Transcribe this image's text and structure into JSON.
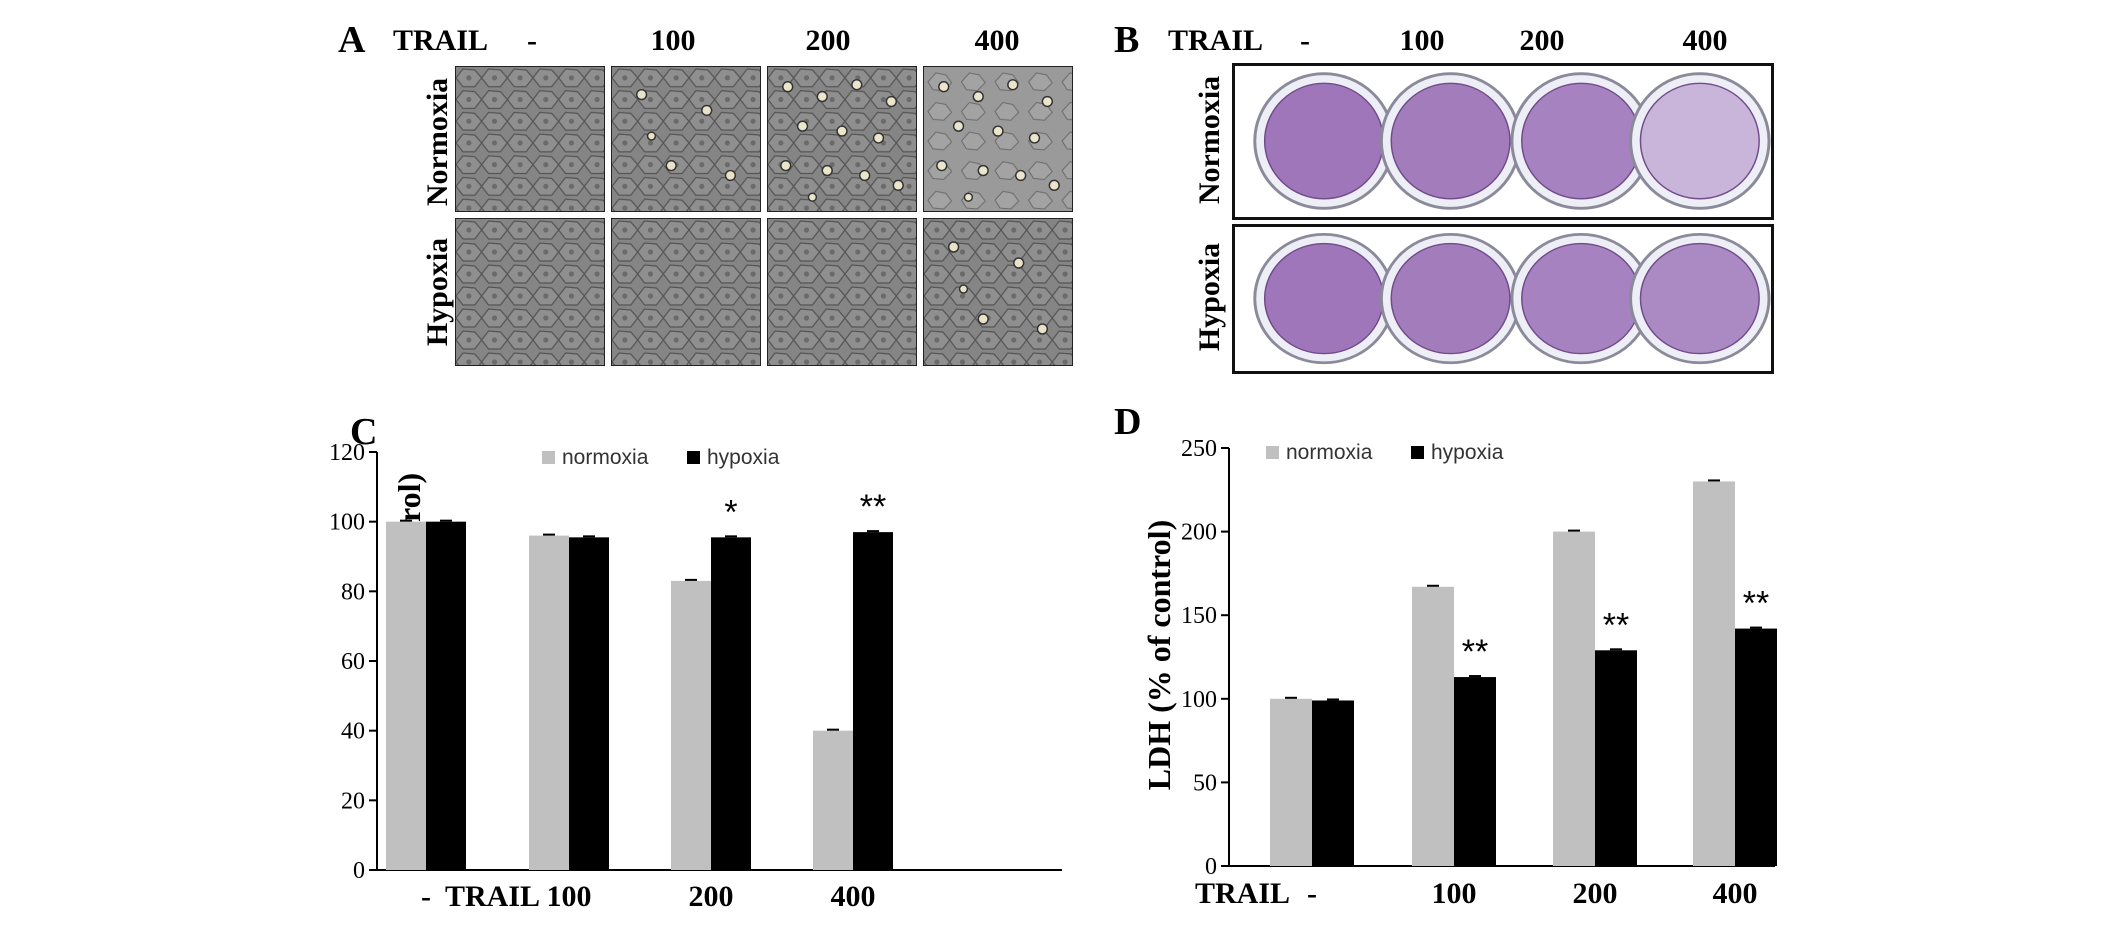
{
  "panels": {
    "a": {
      "letter": "A",
      "treatment_label": "TRAIL",
      "doses": [
        "-",
        "100",
        "200",
        "400"
      ],
      "rows": [
        "Normoxia",
        "Hypoxia"
      ]
    },
    "b": {
      "letter": "B",
      "treatment_label": "TRAIL",
      "doses": [
        "-",
        "100",
        "200",
        "400"
      ],
      "rows": [
        "Normoxia",
        "Hypoxia"
      ]
    },
    "c": {
      "letter": "C"
    },
    "d": {
      "letter": "D"
    }
  },
  "colors": {
    "normoxia": "#c0c0c0",
    "hypoxia": "#000000",
    "stain": "#9a6fb6"
  },
  "stain_level": {
    "Normoxia": [
      0.95,
      0.9,
      0.85,
      0.45
    ],
    "Hypoxia": [
      0.95,
      0.9,
      0.85,
      0.8
    ]
  },
  "chart_data": [
    {
      "type": "bar",
      "panel": "C",
      "ylabel": "Cell viability (% of control)",
      "xlabel": "TRAIL",
      "categories": [
        "-",
        "100",
        "200",
        "400"
      ],
      "ylim": [
        0,
        120
      ],
      "yticks": [
        0,
        20,
        40,
        60,
        80,
        100,
        120
      ],
      "legend": "top",
      "series": [
        {
          "name": "normoxia",
          "values": [
            100,
            96,
            83,
            40
          ]
        },
        {
          "name": "hypoxia",
          "values": [
            100,
            95.5,
            95.5,
            97
          ]
        }
      ],
      "annotations": [
        "",
        "",
        "*",
        "**"
      ]
    },
    {
      "type": "bar",
      "panel": "D",
      "ylabel": "LDH (% of control)",
      "xlabel": "TRAIL",
      "categories": [
        "-",
        "100",
        "200",
        "400"
      ],
      "ylim": [
        0,
        250
      ],
      "yticks": [
        0,
        50,
        100,
        150,
        200,
        250
      ],
      "legend": "top",
      "series": [
        {
          "name": "normoxia",
          "values": [
            100,
            167,
            200,
            230
          ]
        },
        {
          "name": "hypoxia",
          "values": [
            99,
            113,
            129,
            142
          ]
        }
      ],
      "annotations": [
        "",
        "**",
        "**",
        "**"
      ]
    }
  ]
}
